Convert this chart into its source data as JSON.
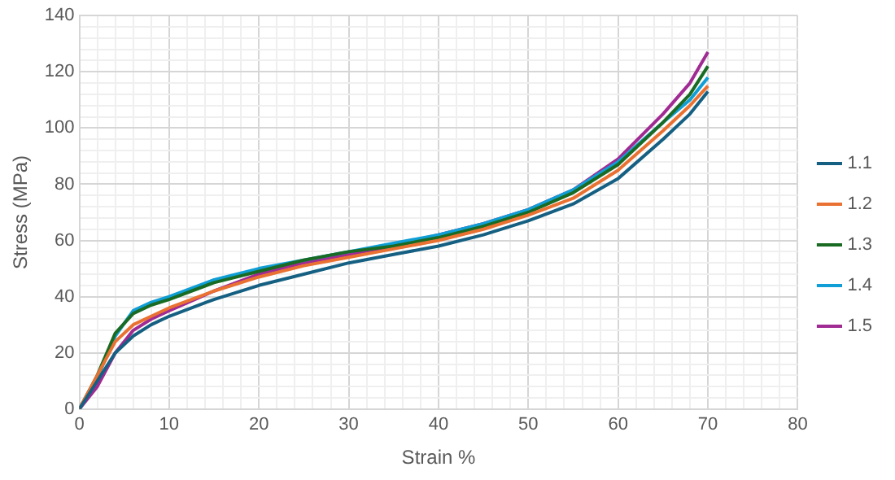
{
  "chart_data": {
    "type": "line",
    "xlabel": "Strain %",
    "ylabel": "Stress (MPa)",
    "x": [
      0,
      2,
      4,
      6,
      8,
      10,
      15,
      20,
      25,
      30,
      35,
      40,
      45,
      50,
      55,
      60,
      65,
      68,
      70
    ],
    "xlim": [
      0,
      80
    ],
    "ylim": [
      0,
      140
    ],
    "xticks": [
      0,
      {
        "value": 2,
        "label": null
      },
      {
        "value": 4,
        "label": null
      },
      {
        "value": 6,
        "label": null
      },
      {
        "value": 8,
        "label": null
      },
      10,
      {
        "value": 12,
        "label": null
      },
      {
        "value": 14,
        "label": null
      },
      {
        "value": 16,
        "label": null
      },
      {
        "value": 18,
        "label": null
      },
      20,
      {
        "value": 22,
        "label": null
      },
      {
        "value": 24,
        "label": null
      },
      {
        "value": 26,
        "label": null
      },
      {
        "value": 28,
        "label": null
      },
      30,
      {
        "value": 32,
        "label": null
      },
      {
        "value": 34,
        "label": null
      },
      {
        "value": 36,
        "label": null
      },
      {
        "value": 38,
        "label": null
      },
      40,
      {
        "value": 42,
        "label": null
      },
      {
        "value": 44,
        "label": null
      },
      {
        "value": 46,
        "label": null
      },
      {
        "value": 48,
        "label": null
      },
      50,
      {
        "value": 52,
        "label": null
      },
      {
        "value": 54,
        "label": null
      },
      {
        "value": 56,
        "label": null
      },
      {
        "value": 58,
        "label": null
      },
      60,
      {
        "value": 62,
        "label": null
      },
      {
        "value": 64,
        "label": null
      },
      {
        "value": 66,
        "label": null
      },
      {
        "value": 68,
        "label": null
      },
      70,
      {
        "value": 72,
        "label": null
      },
      {
        "value": 74,
        "label": null
      },
      {
        "value": 76,
        "label": null
      },
      {
        "value": 78,
        "label": null
      },
      80
    ],
    "yticks": [
      0,
      {
        "value": 4,
        "label": null
      },
      {
        "value": 8,
        "label": null
      },
      {
        "value": 12,
        "label": null
      },
      {
        "value": 16,
        "label": null
      },
      20,
      {
        "value": 24,
        "label": null
      },
      {
        "value": 28,
        "label": null
      },
      {
        "value": 32,
        "label": null
      },
      {
        "value": 36,
        "label": null
      },
      40,
      {
        "value": 44,
        "label": null
      },
      {
        "value": 48,
        "label": null
      },
      {
        "value": 52,
        "label": null
      },
      {
        "value": 56,
        "label": null
      },
      60,
      {
        "value": 64,
        "label": null
      },
      {
        "value": 68,
        "label": null
      },
      {
        "value": 72,
        "label": null
      },
      {
        "value": 76,
        "label": null
      },
      80,
      {
        "value": 84,
        "label": null
      },
      {
        "value": 88,
        "label": null
      },
      {
        "value": 92,
        "label": null
      },
      {
        "value": 96,
        "label": null
      },
      100,
      {
        "value": 104,
        "label": null
      },
      {
        "value": 108,
        "label": null
      },
      {
        "value": 112,
        "label": null
      },
      {
        "value": 116,
        "label": null
      },
      120,
      {
        "value": 124,
        "label": null
      },
      {
        "value": 128,
        "label": null
      },
      {
        "value": 132,
        "label": null
      },
      {
        "value": 136,
        "label": null
      },
      140
    ],
    "grid": true,
    "legend": "right",
    "marker": "none",
    "line_style": "solid",
    "series": [
      {
        "name": "1.1",
        "color": "#156082",
        "values": [
          0,
          10,
          20,
          26,
          30,
          33,
          39,
          44,
          48,
          52,
          55,
          58,
          62,
          67,
          73,
          82,
          96,
          105,
          113
        ]
      },
      {
        "name": "1.2",
        "color": "#e97132",
        "values": [
          0,
          12,
          24,
          30,
          33,
          36,
          42,
          47,
          51,
          54,
          57,
          60,
          64,
          69,
          75,
          85,
          99,
          108,
          115
        ]
      },
      {
        "name": "1.3",
        "color": "#196b24",
        "values": [
          0,
          12,
          27,
          34,
          37,
          39,
          45,
          49,
          53,
          56,
          58,
          61,
          65,
          70,
          77,
          87,
          102,
          112,
          122
        ]
      },
      {
        "name": "1.4",
        "color": "#0f9ed5",
        "values": [
          0,
          11,
          26,
          35,
          38,
          40,
          46,
          50,
          53,
          56,
          59,
          62,
          66,
          71,
          78,
          88,
          102,
          110,
          118
        ]
      },
      {
        "name": "1.5",
        "color": "#a02b93",
        "values": [
          0,
          8,
          20,
          28,
          32,
          35,
          42,
          48,
          52,
          55,
          58,
          62,
          66,
          71,
          78,
          89,
          105,
          116,
          127
        ]
      }
    ]
  }
}
